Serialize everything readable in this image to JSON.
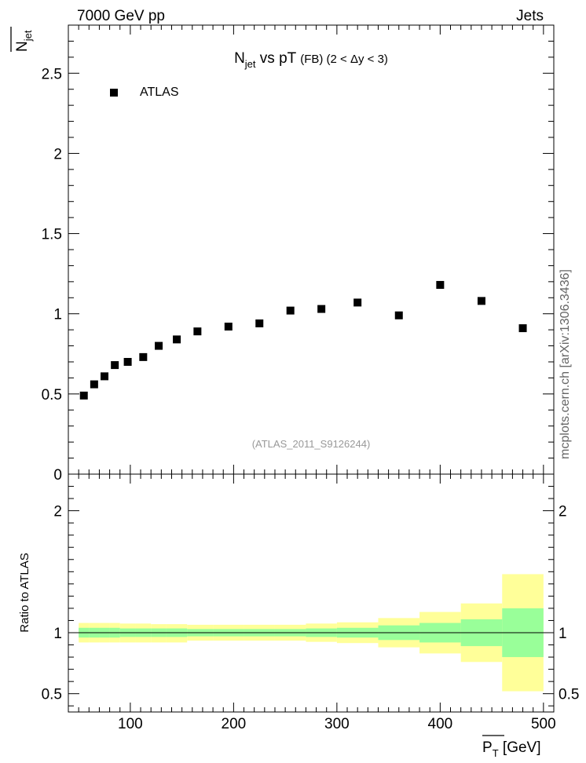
{
  "header": {
    "energy_label": "7000 GeV pp",
    "process_label": "Jets"
  },
  "side_label": "mcplots.cern.ch [arXiv:1306.3436]",
  "chart_data": [
    {
      "type": "scatter",
      "panel": "main",
      "title_parts": {
        "n": "N",
        "n_sub": "jet",
        "vs": " vs pT ",
        "fb": "(FB)",
        "range": " (2 < Δy < 3)"
      },
      "ylabel_parts": {
        "n": "N",
        "n_sub": "jet"
      },
      "watermark": "(ATLAS_2011_S9126244)",
      "legend": [
        {
          "label": "ATLAS",
          "marker": "square",
          "color": "#000000"
        }
      ],
      "xlim": [
        40,
        510
      ],
      "ylim": [
        0,
        2.8
      ],
      "yticks": [
        0,
        0.5,
        1,
        1.5,
        2,
        2.5
      ],
      "ytick_labels": [
        "0",
        "0.5",
        "1",
        "1.5",
        "2",
        "2.5"
      ],
      "series": [
        {
          "name": "ATLAS",
          "x": [
            55,
            65,
            75,
            85,
            97.5,
            112.5,
            127.5,
            145,
            165,
            195,
            225,
            255,
            285,
            320,
            360,
            400,
            440,
            480
          ],
          "y": [
            0.49,
            0.56,
            0.61,
            0.68,
            0.7,
            0.73,
            0.8,
            0.84,
            0.89,
            0.92,
            0.94,
            1.02,
            1.03,
            1.07,
            0.99,
            1.18,
            1.08,
            0.91
          ]
        }
      ]
    },
    {
      "type": "area",
      "panel": "ratio",
      "ylabel": "Ratio to ATLAS",
      "xlabel_parts": {
        "p": "P",
        "p_sub": "T",
        "unit": " [GeV]"
      },
      "xlim": [
        40,
        510
      ],
      "ylim": [
        0.35,
        2.3
      ],
      "xticks": [
        100,
        200,
        300,
        400,
        500
      ],
      "xtick_labels": [
        "100",
        "200",
        "300",
        "400",
        "500"
      ],
      "yticks": [
        0.5,
        1,
        2
      ],
      "ytick_labels": [
        "0.5",
        "1",
        "2"
      ],
      "reference_line": 1,
      "bin_edges": [
        50,
        60,
        70,
        80,
        90,
        105,
        120,
        135,
        155,
        180,
        210,
        240,
        270,
        300,
        340,
        380,
        420,
        460,
        500
      ],
      "band_outer": {
        "name": "total uncertainty",
        "color": "#ffff99",
        "lo": [
          0.92,
          0.92,
          0.92,
          0.92,
          0.92,
          0.92,
          0.92,
          0.92,
          0.935,
          0.935,
          0.935,
          0.935,
          0.925,
          0.915,
          0.88,
          0.83,
          0.76,
          0.52
        ],
        "hi": [
          1.08,
          1.08,
          1.08,
          1.08,
          1.075,
          1.075,
          1.07,
          1.07,
          1.065,
          1.065,
          1.065,
          1.065,
          1.075,
          1.085,
          1.12,
          1.17,
          1.24,
          1.48
        ]
      },
      "band_inner": {
        "name": "statistical uncertainty",
        "color": "#99ff99",
        "lo": [
          0.96,
          0.96,
          0.96,
          0.96,
          0.965,
          0.965,
          0.965,
          0.965,
          0.97,
          0.97,
          0.97,
          0.97,
          0.965,
          0.96,
          0.94,
          0.92,
          0.89,
          0.8
        ],
        "hi": [
          1.04,
          1.04,
          1.04,
          1.04,
          1.035,
          1.035,
          1.035,
          1.035,
          1.03,
          1.03,
          1.03,
          1.03,
          1.035,
          1.04,
          1.06,
          1.08,
          1.11,
          1.2
        ]
      }
    }
  ]
}
